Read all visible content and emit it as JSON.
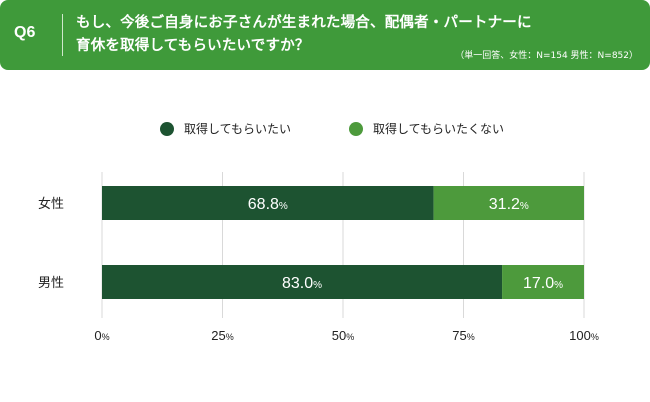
{
  "header": {
    "question_number": "Q6",
    "question_line1": "もし、今後ご自身にお子さんが生まれた場合、配偶者・パートナーに",
    "question_line2": "育休を取得してもらいたいですか？",
    "sample_note": "（単一回答、女性：N=154 男性：N=852）"
  },
  "colors": {
    "header_bg": "#3f9a3a",
    "want": "#1d5331",
    "not_want": "#4d9a3c",
    "grid": "#d9d9d9"
  },
  "chart_data": {
    "type": "bar",
    "orientation": "horizontal",
    "stacked": true,
    "categories": [
      "女性",
      "男性"
    ],
    "series": [
      {
        "name": "取得してもらいたい",
        "values": [
          68.8,
          83.0
        ],
        "labels": [
          "68.8",
          "83.0"
        ],
        "color": "#1d5331"
      },
      {
        "name": "取得してもらいたくない",
        "values": [
          31.2,
          17.0
        ],
        "labels": [
          "31.2",
          "17.0"
        ],
        "color": "#4d9a3c"
      }
    ],
    "value_unit": "%",
    "xlim": [
      0,
      100
    ],
    "xticks": [
      0,
      25,
      50,
      75,
      100
    ],
    "grid": true,
    "legend_position": "top-center"
  }
}
